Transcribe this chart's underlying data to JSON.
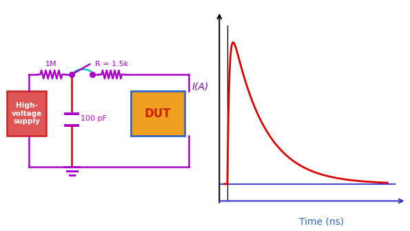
{
  "bg_color": "#ffffff",
  "wire_color": "#aa00cc",
  "cap_wire_color": "#cc0000",
  "supply_box_color": "#e05555",
  "supply_box_edge": "#cc2222",
  "supply_text": "High-\nvoltage\nsupply",
  "supply_text_color": "#ffffff",
  "dut_box_color": "#f0a020",
  "dut_box_edge": "#3366cc",
  "dut_text": "DUT",
  "dut_text_color": "#cc2200",
  "cap_plate_color": "#aa00cc",
  "cap_label": "100 pF",
  "cap_label_color": "#cc00cc",
  "r1_label": "1M",
  "r1_label_color": "#aa00cc",
  "r2_label": "R = 1.5k",
  "r2_label_color": "#aa00cc",
  "switch_color": "#00ccbb",
  "yaxis_color": "#000000",
  "xaxis_color": "#3333cc",
  "curve_color": "#dd0000",
  "xlabel": "Time (ns)",
  "ylabel": "I(A)",
  "xlabel_color": "#3366cc",
  "ylabel_color": "#7700aa"
}
